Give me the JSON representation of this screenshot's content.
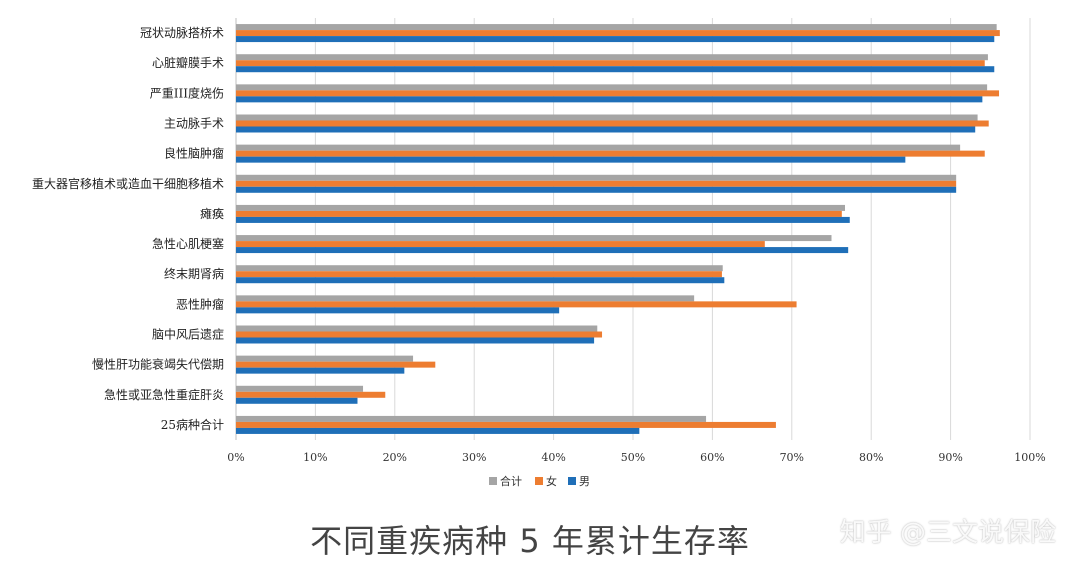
{
  "chart_data": {
    "type": "bar",
    "orientation": "horizontal",
    "title": "不同重疾病种 5 年累计生存率",
    "categories": [
      "冠状动脉搭桥术",
      "心脏瓣膜手术",
      "严重III度烧伤",
      "主动脉手术",
      "良性脑肿瘤",
      "重大器官移植术或造血干细胞移植术",
      "瘫痪",
      "急性心肌梗塞",
      "终末期肾病",
      "恶性肿瘤",
      "脑中风后遗症",
      "慢性肝功能衰竭失代偿期",
      "急性或亚急性重症肝炎",
      "25病种合计"
    ],
    "series": [
      {
        "name": "合计",
        "color": "#A5A5A5",
        "values": [
          0.958,
          0.947,
          0.946,
          0.934,
          0.912,
          0.907,
          0.767,
          0.75,
          0.613,
          0.577,
          0.455,
          0.223,
          0.16,
          0.592
        ]
      },
      {
        "name": "女",
        "color": "#ED7D31",
        "values": [
          0.962,
          0.943,
          0.961,
          0.948,
          0.943,
          0.907,
          0.763,
          0.666,
          0.612,
          0.706,
          0.461,
          0.251,
          0.188,
          0.68
        ]
      },
      {
        "name": "男",
        "color": "#1F6FB8",
        "values": [
          0.955,
          0.955,
          0.94,
          0.931,
          0.843,
          0.907,
          0.773,
          0.771,
          0.615,
          0.407,
          0.451,
          0.212,
          0.153,
          0.508
        ]
      }
    ],
    "xlim": [
      0,
      1
    ],
    "x_ticks": [
      "0%",
      "10%",
      "20%",
      "30%",
      "40%",
      "50%",
      "60%",
      "70%",
      "80%",
      "90%",
      "100%"
    ],
    "grid": true,
    "legend_position": "bottom"
  },
  "watermark": "知乎 @三文说保险"
}
